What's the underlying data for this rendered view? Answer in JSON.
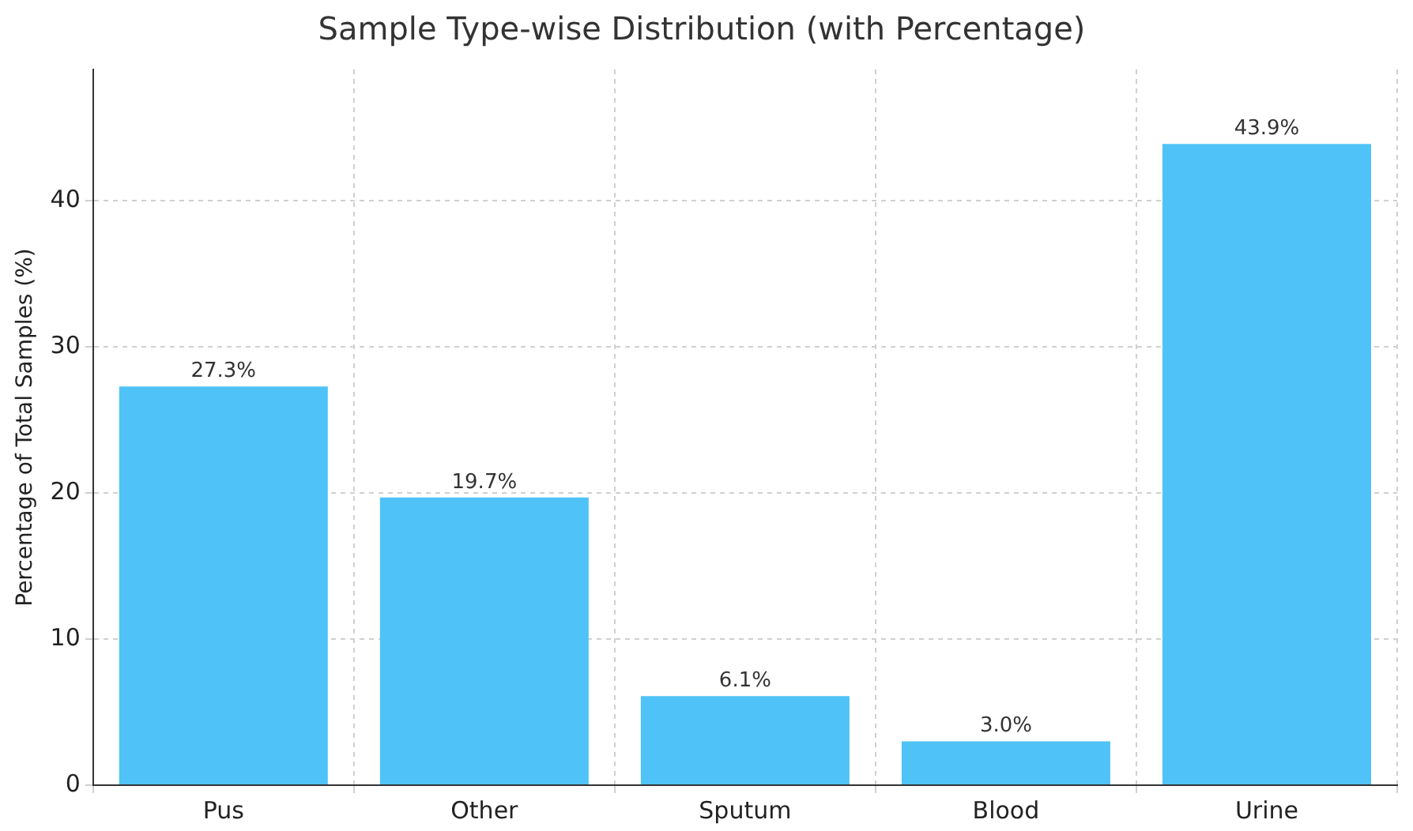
{
  "chart_data": {
    "type": "bar",
    "title": "Sample Type-wise Distribution (with Percentage)",
    "ylabel": "Percentage of Total Samples (%)",
    "categories": [
      "Pus",
      "Other",
      "Sputum",
      "Blood",
      "Urine"
    ],
    "values": [
      27.3,
      19.7,
      6.1,
      3.0,
      43.9
    ],
    "value_labels": [
      "27.3%",
      "19.7%",
      "6.1%",
      "3.0%",
      "43.9%"
    ],
    "color": "#4fc3f7",
    "ylim": [
      0,
      49
    ],
    "yticks": [
      0,
      10,
      20,
      30,
      40
    ],
    "grid": true
  }
}
